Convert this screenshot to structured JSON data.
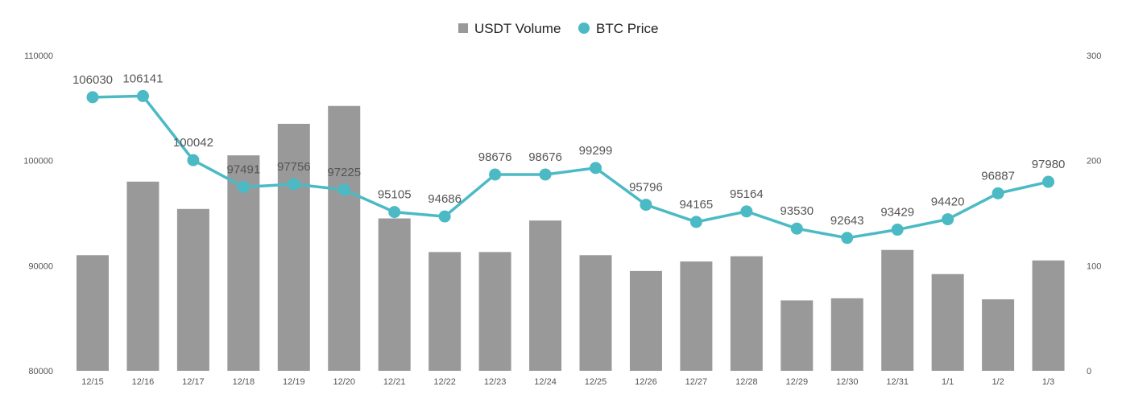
{
  "chart_data": {
    "type": "bar+line",
    "categories": [
      "12/15",
      "12/16",
      "12/17",
      "12/18",
      "12/19",
      "12/20",
      "12/21",
      "12/22",
      "12/23",
      "12/24",
      "12/25",
      "12/26",
      "12/27",
      "12/28",
      "12/29",
      "12/30",
      "12/31",
      "1/1",
      "1/2",
      "1/3"
    ],
    "series": [
      {
        "name": "USDT Volume",
        "type": "bar",
        "axis": "right",
        "color": "#999999",
        "values": [
          110,
          180,
          154,
          205,
          235,
          252,
          145,
          113,
          113,
          143,
          110,
          95,
          104,
          109,
          67,
          69,
          115,
          92,
          68,
          105
        ]
      },
      {
        "name": "BTC Price",
        "type": "line",
        "axis": "left",
        "color": "#4BBAC4",
        "values": [
          106030,
          106141,
          100042,
          97491,
          97756,
          97225,
          95105,
          94686,
          98676,
          98676,
          99299,
          95796,
          94165,
          95164,
          93530,
          92643,
          93429,
          94420,
          96887,
          97980
        ],
        "labels": [
          "106030",
          "106141",
          "100042",
          "97491",
          "97756",
          "97225",
          "95105",
          "94686",
          "98676",
          "98676",
          "99299",
          "95796",
          "94165",
          "95164",
          "93530",
          "92643",
          "93429",
          "94420",
          "96887",
          "97980"
        ]
      }
    ],
    "y_left": {
      "min": 80000,
      "max": 110000,
      "ticks": [
        "80000",
        "90000",
        "100000",
        "110000"
      ]
    },
    "y_right": {
      "min": 0,
      "max": 300,
      "ticks": [
        "0",
        "100",
        "200",
        "300"
      ]
    },
    "legend_position": "top-center",
    "grid": false
  }
}
